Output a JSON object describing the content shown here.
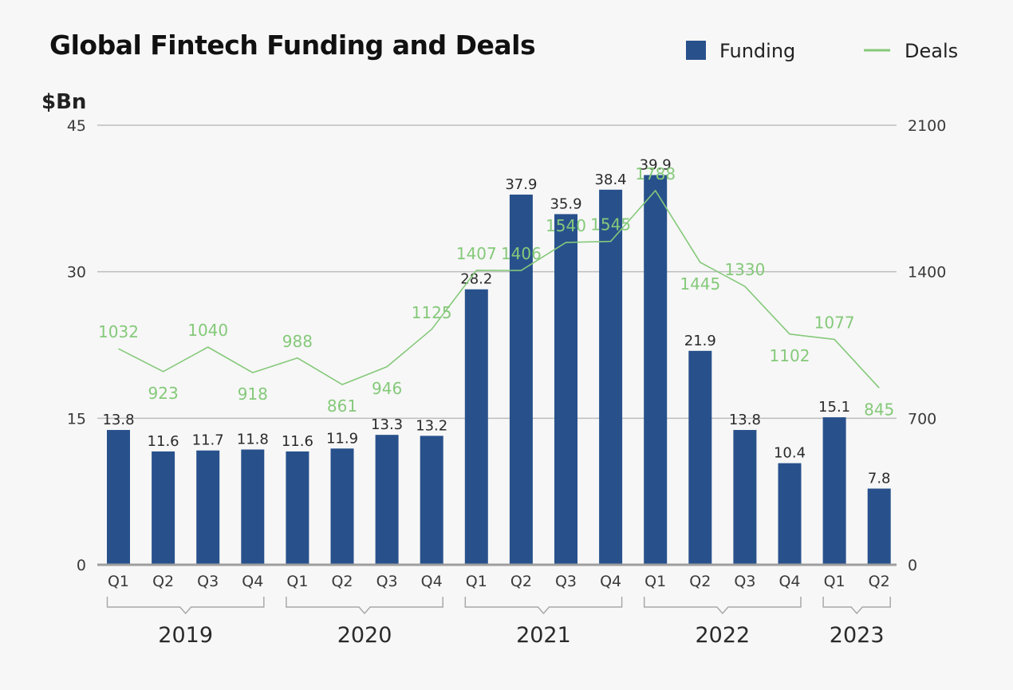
{
  "chart_data": {
    "type": "bar",
    "title": "Global Fintech Funding and Deals",
    "ylabel": "$Bn",
    "ylim": [
      0,
      45
    ],
    "y2lim": [
      0,
      2100
    ],
    "yticks": [
      "0",
      "15",
      "30",
      "45"
    ],
    "y2ticks": [
      "0",
      "700",
      "1400",
      "2100"
    ],
    "grid": true,
    "legend_placement": "top-right",
    "categories": [
      "Q1",
      "Q2",
      "Q3",
      "Q4",
      "Q1",
      "Q2",
      "Q3",
      "Q4",
      "Q1",
      "Q2",
      "Q3",
      "Q4",
      "Q1",
      "Q2",
      "Q3",
      "Q4",
      "Q1",
      "Q2"
    ],
    "years": [
      {
        "label": "2019",
        "count": 4
      },
      {
        "label": "2020",
        "count": 4
      },
      {
        "label": "2021",
        "count": 4
      },
      {
        "label": "2022",
        "count": 4
      },
      {
        "label": "2023",
        "count": 2
      }
    ],
    "series": [
      {
        "name": "Funding",
        "kind": "bar",
        "axis": "left",
        "color": "#28518c",
        "values": [
          13.8,
          11.6,
          11.7,
          11.8,
          11.6,
          11.9,
          13.3,
          13.2,
          28.2,
          37.9,
          35.9,
          38.4,
          39.9,
          21.9,
          13.8,
          10.4,
          15.1,
          7.8
        ],
        "labels": [
          "13.8",
          "11.6",
          "11.7",
          "11.8",
          "11.6",
          "11.9",
          "13.3",
          "13.2",
          "28.2",
          "37.9",
          "35.9",
          "38.4",
          "39.9",
          "21.9",
          "13.8",
          "10.4",
          "15.1",
          "7.8"
        ]
      },
      {
        "name": "Deals",
        "kind": "line",
        "axis": "right",
        "color": "#85c97a",
        "values": [
          1032,
          923,
          1040,
          918,
          988,
          861,
          946,
          1125,
          1407,
          1406,
          1540,
          1545,
          1788,
          1445,
          1330,
          1102,
          1077,
          845
        ],
        "labels": [
          "1032",
          "923",
          "1040",
          "918",
          "988",
          "861",
          "946",
          "1125",
          "1407",
          "1406",
          "1540",
          "1545",
          "1788",
          "1445",
          "1330",
          "1102",
          "1077",
          "845"
        ]
      }
    ]
  }
}
